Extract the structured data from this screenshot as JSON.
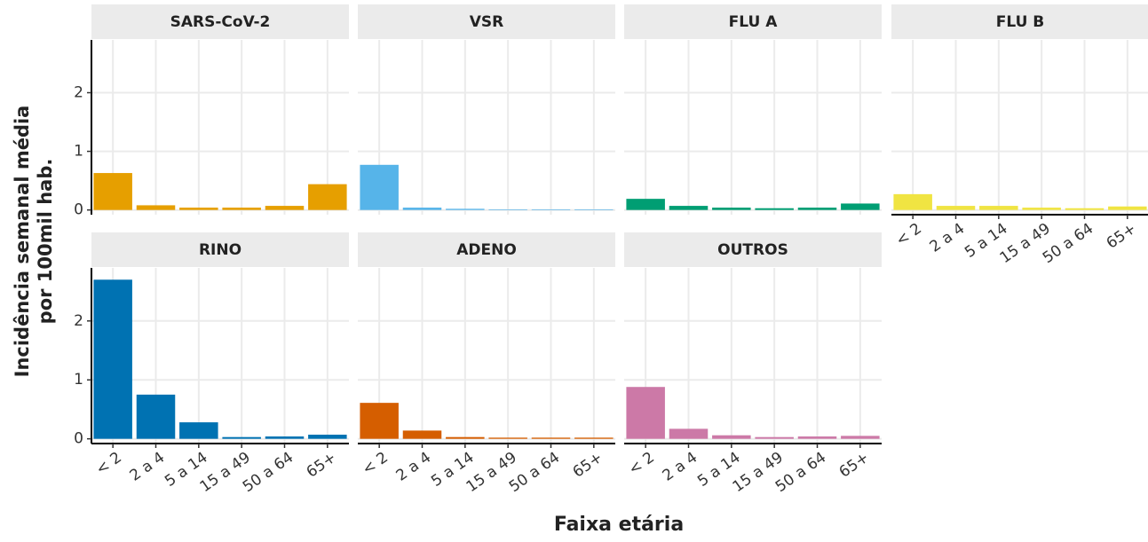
{
  "ylabel": [
    "Incidência  semanal média",
    "por 100mil hab."
  ],
  "xlabel": "Faixa etária",
  "chart_data": [
    {
      "type": "bar",
      "title": "SARS-CoV-2",
      "color": "#E69F00",
      "values": [
        0.63,
        0.08,
        0.04,
        0.04,
        0.07,
        0.44
      ],
      "ylim": [
        -0.08,
        2.9
      ],
      "yticks": [
        0,
        1,
        2
      ]
    },
    {
      "type": "bar",
      "title": "VSR",
      "color": "#56B4E9",
      "values": [
        0.77,
        0.04,
        0.02,
        0.01,
        0.01,
        0.01
      ],
      "ylim": [
        -0.08,
        2.9
      ]
    },
    {
      "type": "bar",
      "title": "FLU A",
      "color": "#009E73",
      "values": [
        0.19,
        0.07,
        0.04,
        0.03,
        0.04,
        0.11
      ],
      "ylim": [
        -0.08,
        2.9
      ]
    },
    {
      "type": "bar",
      "title": "FLU B",
      "color": "#F0E442",
      "categories": [
        "< 2",
        "2 a 4",
        "5 a 14",
        "15 a 49",
        "50 a 64",
        "65+"
      ],
      "values": [
        0.27,
        0.07,
        0.07,
        0.04,
        0.03,
        0.06
      ],
      "ylim": [
        -0.08,
        2.9
      ]
    },
    {
      "type": "bar",
      "title": "RINO",
      "color": "#0072B2",
      "categories": [
        "< 2",
        "2 a 4",
        "5 a 14",
        "15 a 49",
        "50 a 64",
        "65+"
      ],
      "values": [
        2.7,
        0.75,
        0.28,
        0.03,
        0.04,
        0.07
      ],
      "ylim": [
        -0.08,
        2.9
      ],
      "yticks": [
        0,
        1,
        2
      ]
    },
    {
      "type": "bar",
      "title": "ADENO",
      "color": "#D55E00",
      "categories": [
        "< 2",
        "2 a 4",
        "5 a 14",
        "15 a 49",
        "50 a 64",
        "65+"
      ],
      "values": [
        0.61,
        0.14,
        0.03,
        0.02,
        0.02,
        0.02
      ],
      "ylim": [
        -0.08,
        2.9
      ]
    },
    {
      "type": "bar",
      "title": "OUTROS",
      "color": "#CC79A7",
      "categories": [
        "< 2",
        "2 a 4",
        "5 a 14",
        "15 a 49",
        "50 a 64",
        "65+"
      ],
      "values": [
        0.88,
        0.17,
        0.06,
        0.03,
        0.04,
        0.05
      ],
      "ylim": [
        -0.08,
        2.9
      ]
    }
  ]
}
